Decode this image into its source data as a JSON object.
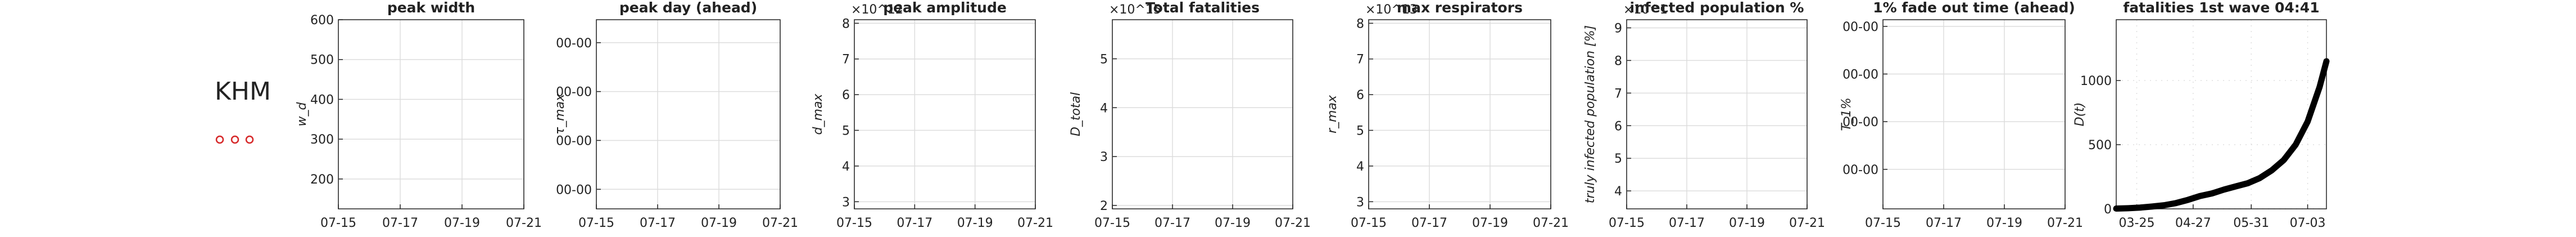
{
  "country": "KHM",
  "chart_data": [
    {
      "type": "line",
      "title": "peak width",
      "ylabel": "w_d",
      "xlim": [
        "07-15",
        "07-21"
      ],
      "xticks": [
        "07-15",
        "07-17",
        "07-19",
        "07-21"
      ],
      "ylim": [
        125,
        600
      ],
      "yticks": [
        200,
        300,
        400,
        500,
        600
      ],
      "grid": true
    },
    {
      "type": "line",
      "title": "peak day (ahead)",
      "ylabel": "τ_max",
      "xlim": [
        "07-15",
        "07-21"
      ],
      "xticks": [
        "07-15",
        "07-17",
        "07-19",
        "07-21"
      ],
      "ylim": [
        0.6,
        4.47
      ],
      "yticks": [
        {
          "value": 1,
          "label": "00-00"
        },
        {
          "value": 2,
          "label": "00-00"
        },
        {
          "value": 3,
          "label": "00-00"
        },
        {
          "value": 4,
          "label": "00-00"
        }
      ],
      "grid": true
    },
    {
      "type": "line",
      "title": "peak amplitude",
      "exponent": "×10^12",
      "ylabel": "d_max",
      "xlim": [
        "07-15",
        "07-21"
      ],
      "xticks": [
        "07-15",
        "07-17",
        "07-19",
        "07-21"
      ],
      "ylim": [
        2.8,
        8.1
      ],
      "yticks": [
        3,
        4,
        5,
        6,
        7,
        8
      ],
      "grid": true
    },
    {
      "type": "line",
      "title": "Total fatalities",
      "exponent": "×10^15",
      "ylabel": "D_total",
      "xlim": [
        "07-15",
        "07-21"
      ],
      "xticks": [
        "07-15",
        "07-17",
        "07-19",
        "07-21"
      ],
      "ylim": [
        1.93,
        5.8
      ],
      "yticks": [
        2,
        3,
        4,
        5
      ],
      "grid": true
    },
    {
      "type": "line",
      "title": "max respirators",
      "exponent": "×10^13",
      "ylabel": "r_max",
      "xlim": [
        "07-15",
        "07-21"
      ],
      "xticks": [
        "07-15",
        "07-17",
        "07-19",
        "07-21"
      ],
      "ylim": [
        2.8,
        8.1
      ],
      "yticks": [
        3,
        4,
        5,
        6,
        7,
        8
      ],
      "grid": true
    },
    {
      "type": "line",
      "title": "infected population %",
      "exponent": "×10^1",
      "ylabel": "truly infected population [%]",
      "xlim": [
        "07-15",
        "07-21"
      ],
      "xticks": [
        "07-15",
        "07-17",
        "07-19",
        "07-21"
      ],
      "ylim": [
        3.45,
        9.25
      ],
      "yticks": [
        4,
        5,
        6,
        7,
        8,
        9
      ],
      "grid": true
    },
    {
      "type": "line",
      "title": "1% fade out time (ahead)",
      "ylabel": "T_1%",
      "xlim": [
        "07-15",
        "07-21"
      ],
      "xticks": [
        "07-15",
        "07-17",
        "07-19",
        "07-21"
      ],
      "ylim": [
        0.17,
        4.14
      ],
      "yticks": [
        {
          "value": 1,
          "label": "00-00"
        },
        {
          "value": 2,
          "label": "00-00"
        },
        {
          "value": 3,
          "label": "00-00"
        },
        {
          "value": 4,
          "label": "00-00"
        }
      ],
      "grid": true
    },
    {
      "type": "line",
      "title": "fatalities 1st wave 04:41",
      "ylabel": "D(t)",
      "xlim": [
        "03-13",
        "07-14"
      ],
      "xticks": [
        "03-25",
        "04-27",
        "05-31",
        "07-03"
      ],
      "ylim": [
        0,
        1474
      ],
      "yticks": [
        0,
        500,
        1000
      ],
      "grid": true,
      "grid_style": "dotted",
      "series": [
        {
          "name": "D(t)",
          "color": "#000000",
          "x": [
            "03-13",
            "03-20",
            "03-27",
            "04-03",
            "04-10",
            "04-17",
            "04-24",
            "05-01",
            "05-08",
            "05-15",
            "05-22",
            "05-29",
            "06-05",
            "06-12",
            "06-19",
            "06-26",
            "07-03",
            "07-10",
            "07-14"
          ],
          "values": [
            2,
            5,
            10,
            18,
            28,
            45,
            70,
            100,
            120,
            150,
            175,
            200,
            240,
            300,
            380,
            500,
            680,
            950,
            1150
          ]
        }
      ]
    }
  ]
}
